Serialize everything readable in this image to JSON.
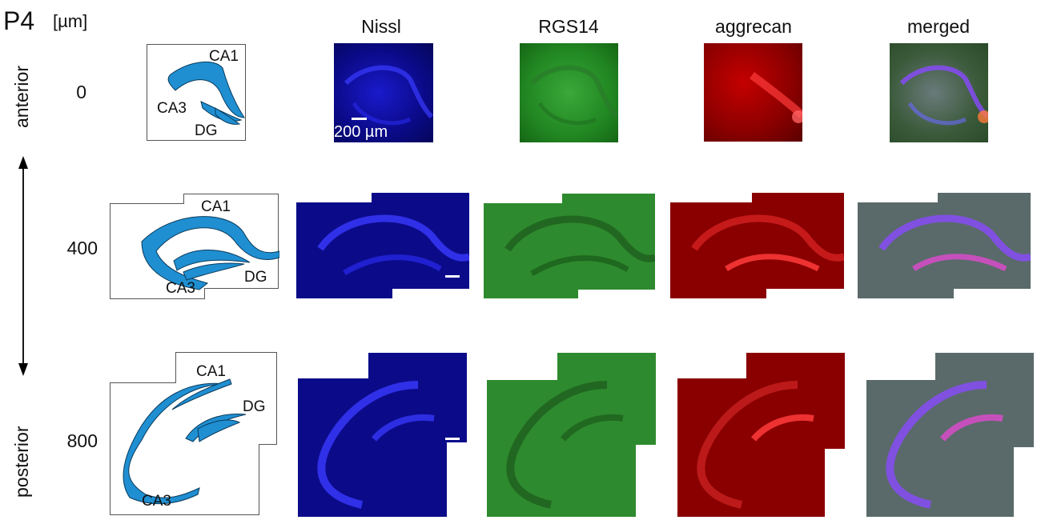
{
  "age": "P4",
  "unit": "[µm]",
  "columns": [
    "Nissl",
    "RGS14",
    "aggrecan",
    "merged"
  ],
  "axis": {
    "top": "anterior",
    "bottom": "posterior"
  },
  "rows": [
    {
      "depth": "0",
      "labels": {
        "ca1": "CA1",
        "ca3": "CA3",
        "dg": "DG"
      }
    },
    {
      "depth": "400",
      "labels": {
        "ca1": "CA1",
        "ca3": "CA3",
        "dg": "DG"
      }
    },
    {
      "depth": "800",
      "labels": {
        "ca1": "CA1",
        "ca3": "CA3",
        "dg": "DG"
      }
    }
  ],
  "scale_bar": "200 µm",
  "colors": {
    "sketch_fill": "#1f8fd2",
    "nissl": "#1a1aff",
    "rgs14": "#2ea02e",
    "aggrecan": "#c40000"
  }
}
